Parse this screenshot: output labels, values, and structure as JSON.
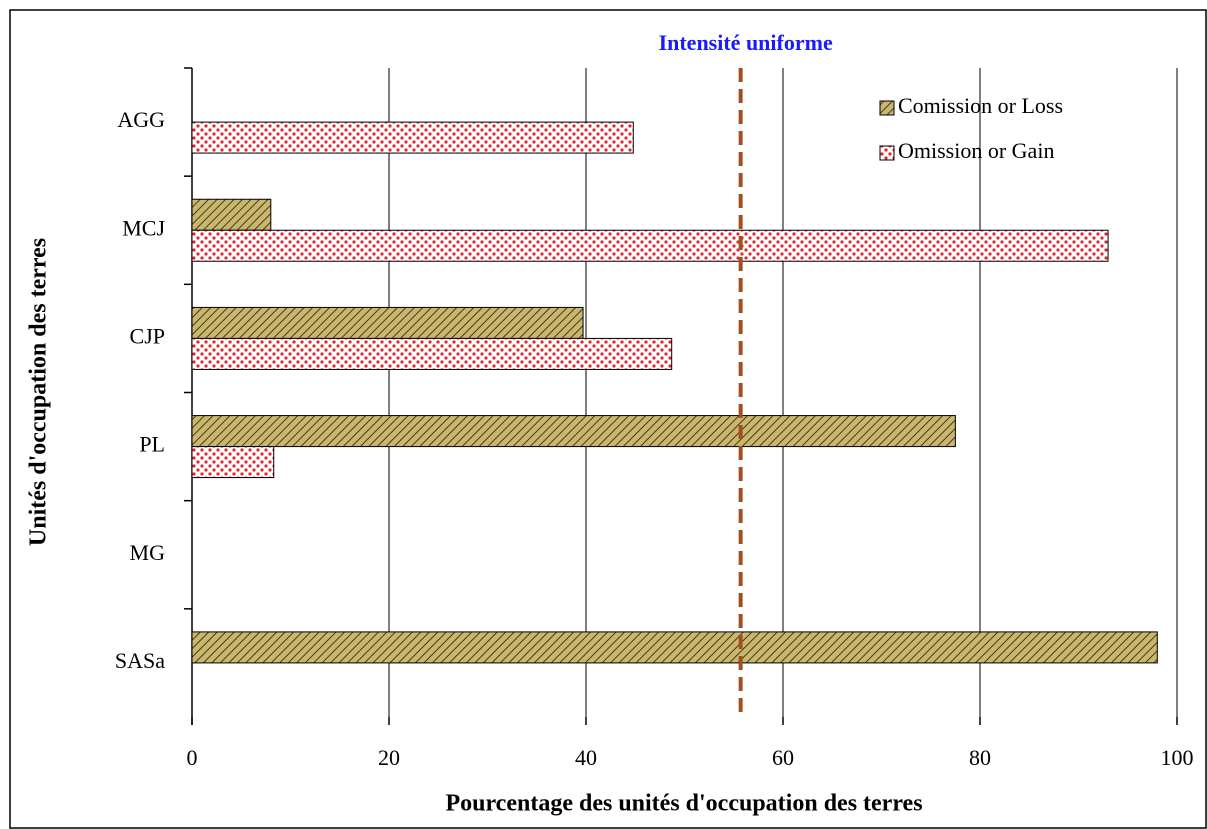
{
  "chart_data": {
    "type": "barh",
    "xlabel": "Pourcentage des unités d'occupation des terres",
    "ylabel": "Unités d'occupation des terres",
    "categories": [
      "AGG",
      "MCJ",
      "CJP",
      "PL",
      "MG",
      "SASa"
    ],
    "series": [
      {
        "name": "Comission or Loss",
        "color": "#c9b671",
        "pattern": "hatch",
        "values": [
          0,
          8,
          39.7,
          77.5,
          0,
          98
        ]
      },
      {
        "name": "Omission or Gain",
        "color": "#e8242b",
        "pattern": "dots",
        "values": [
          44.8,
          93,
          48.7,
          8.3,
          0,
          0
        ]
      }
    ],
    "xlim": [
      0,
      100
    ],
    "xticks": [
      0,
      20,
      40,
      60,
      80,
      100
    ],
    "grid": true,
    "legend": "upper right",
    "reference_line": {
      "value": 55.7,
      "label": "Intensité uniforme",
      "color": "#a0501e",
      "label_color": "#1a1aff"
    }
  }
}
